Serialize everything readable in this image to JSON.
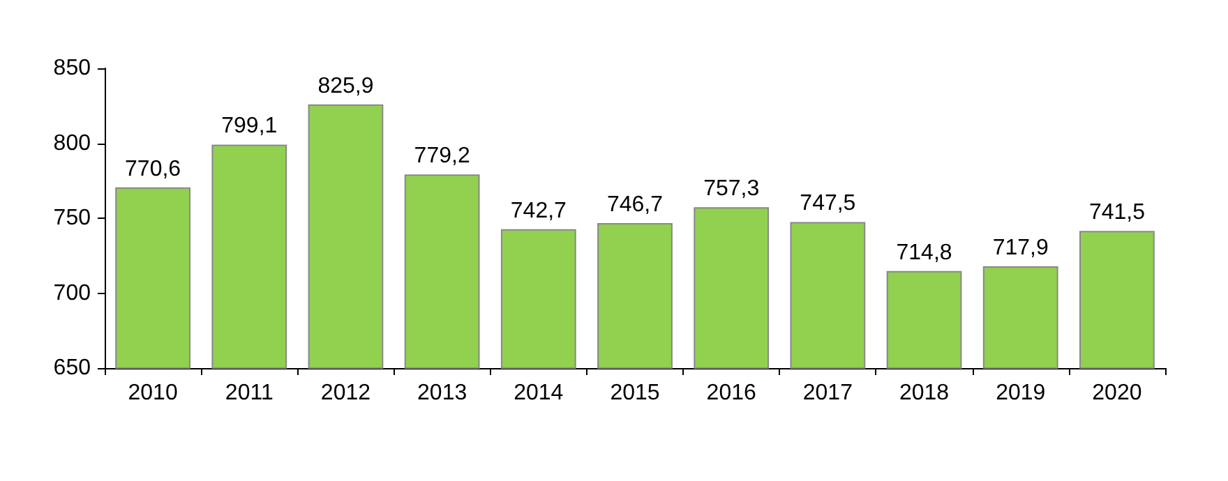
{
  "chart_data": {
    "type": "bar",
    "categories": [
      "2010",
      "2011",
      "2012",
      "2013",
      "2014",
      "2015",
      "2016",
      "2017",
      "2018",
      "2019",
      "2020"
    ],
    "values": [
      770.6,
      799.1,
      825.9,
      779.2,
      742.7,
      746.7,
      757.3,
      747.5,
      714.8,
      717.9,
      741.5
    ],
    "value_labels": [
      "770,6",
      "799,1",
      "825,9",
      "779,2",
      "742,7",
      "746,7",
      "757,3",
      "747,5",
      "714,8",
      "717,9",
      "741,5"
    ],
    "color": "#92d050",
    "ylim": [
      650,
      850
    ],
    "yticks": [
      650,
      700,
      750,
      800,
      850
    ]
  }
}
